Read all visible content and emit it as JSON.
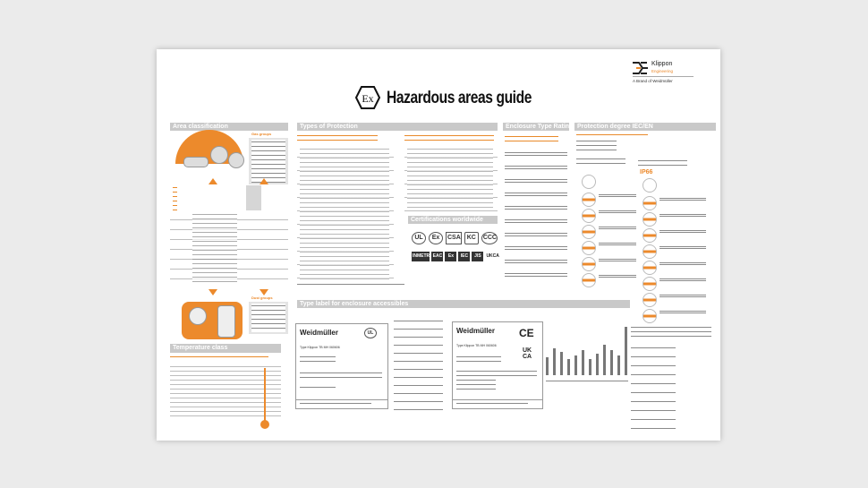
{
  "header": {
    "title": "Hazardous areas guide",
    "ex_symbol": "Ex"
  },
  "logo": {
    "name": "Klippon",
    "sub": "Engineering",
    "tagline": "A Brand of Weidmüller",
    "color": "#ec8a2c"
  },
  "sections": {
    "area": "Area classification",
    "types": "Types of Protection",
    "enclosure": "Enclosure Type Rating (CSA/UL)",
    "protection": "Protection degree IEC/EN",
    "certs": "Certifications worldwide",
    "temperature": "Temperature class",
    "typelabel": "Type label for enclosure accessibles"
  },
  "area": {
    "gas_groups": "Gas groups",
    "dust_groups": "Dust groups"
  },
  "protection": {
    "example": "IP66"
  },
  "certs": [
    "UL",
    "Ex",
    "CSA",
    "KC",
    "CCC",
    "INMETRO",
    "EAC",
    "Ex",
    "IEC",
    "JIS",
    "UKCA"
  ],
  "labels": {
    "brand": "Weidmüller",
    "left_type": "Type  Klippon TB MH 060606",
    "right_type": "Type  Klippon TB MH 060606",
    "ce": "CE",
    "ukca": "UK CA"
  },
  "colors": {
    "accent": "#ec8a2c",
    "section": "#c9c9c9"
  }
}
